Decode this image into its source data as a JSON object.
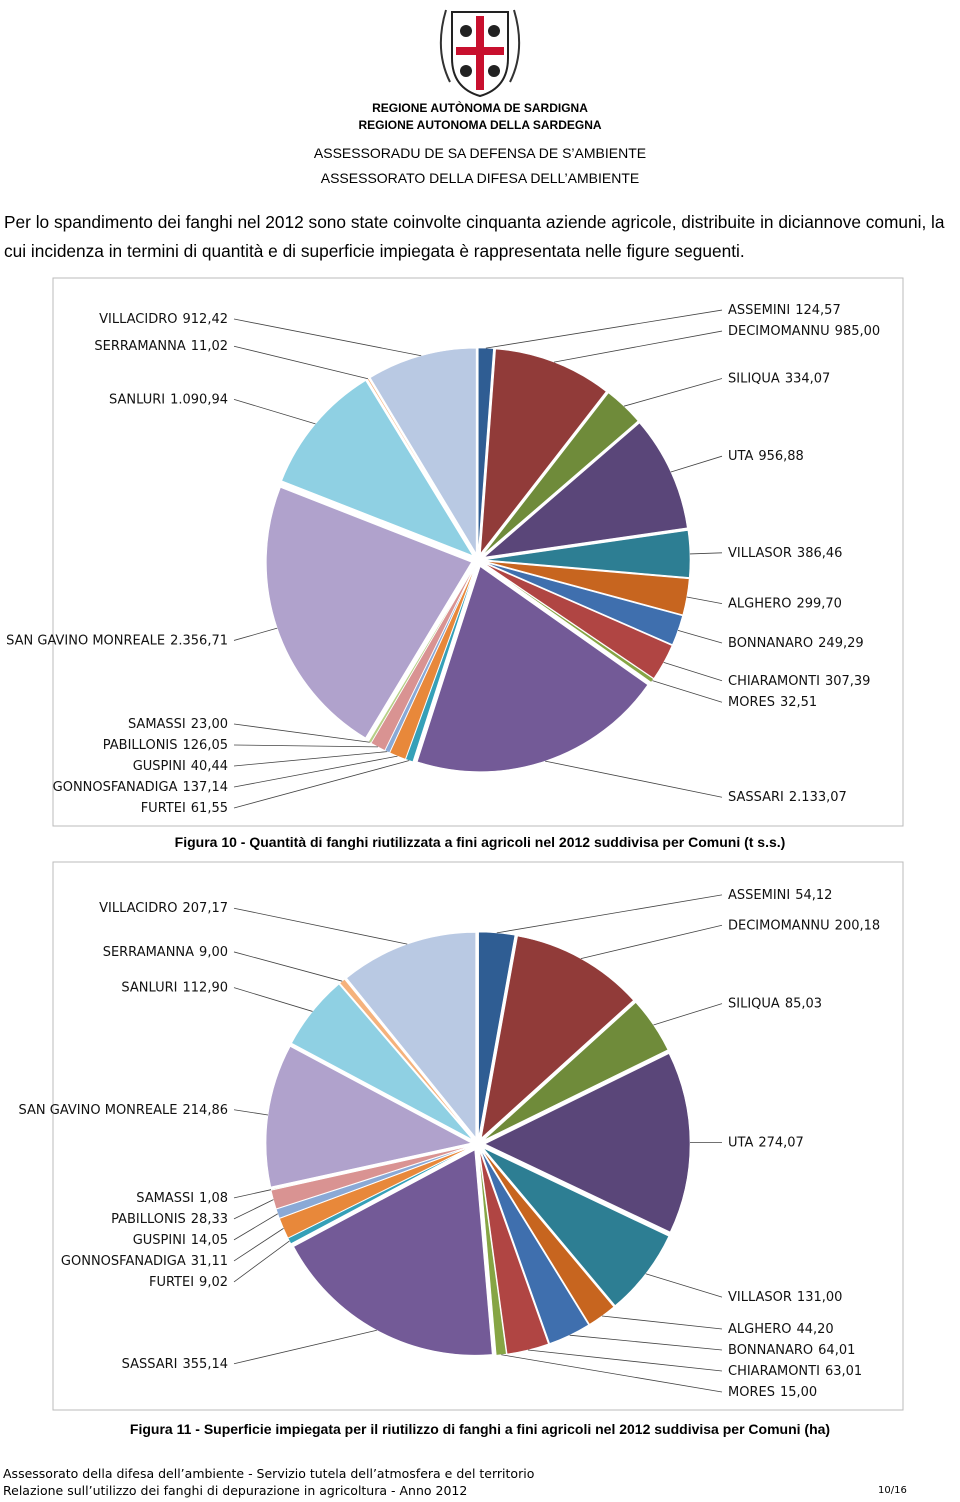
{
  "header": {
    "region_1": "REGIONE AUTÒNOMA DE SARDIGNA",
    "region_2": "REGIONE AUTONOMA DELLA SARDEGNA",
    "dept_1": "ASSESSORADU DE SA DEFENSA DE S’AMBIENTE",
    "dept_2": "ASSESSORATO DELLA DIFESA DELL’AMBIENTE"
  },
  "intro": "Per lo spandimento dei fanghi nel 2012 sono state coinvolte cinquanta aziende agricole, distribuite in diciannove comuni, la cui incidenza in termini di quantità e di superficie impiegata è rappresentata nelle figure seguenti.",
  "chart_data": [
    {
      "type": "pie",
      "caption": "Figura 10 - Quantità di fanghi riutilizzata a fini agricoli nel 2012 suddivisa per Comuni (t s.s.)",
      "categories": [
        "ASSEMINI",
        "DECIMOMANNU",
        "SILIQUA",
        "UTA",
        "VILLASOR",
        "ALGHERO",
        "BONNANARO",
        "CHIARAMONTI",
        "MORES",
        "SASSARI",
        "FURTEI",
        "GONNOSFANADIGA",
        "GUSPINI",
        "PABILLONIS",
        "SAMASSI",
        "SAN GAVINO MONREALE",
        "SANLURI",
        "SERRAMANNA",
        "VILLACIDRO"
      ],
      "values": [
        124.57,
        985.0,
        334.07,
        956.88,
        386.46,
        299.7,
        249.29,
        307.39,
        32.51,
        2133.07,
        61.55,
        137.14,
        40.44,
        126.05,
        23.0,
        2356.71,
        1090.94,
        11.02,
        912.42
      ],
      "value_labels": [
        "124,57",
        "985,00",
        "334,07",
        "956,88",
        "386,46",
        "299,70",
        "249,29",
        "307,39",
        "32,51",
        "2.133,07",
        "61,55",
        "137,14",
        "40,44",
        "126,05",
        "23,00",
        "2.356,71",
        "1.090,94",
        "11,02",
        "912,42"
      ],
      "colors": [
        "#2f5d93",
        "#913b39",
        "#6f8b3a",
        "#5a4679",
        "#2d7e93",
        "#c7651f",
        "#3f6fae",
        "#b04543",
        "#86a544",
        "#735a97",
        "#35a0b8",
        "#e8883a",
        "#8aa9d6",
        "#d99392",
        "#b7cf87",
        "#b0a2cc",
        "#8fd0e3",
        "#f5b27c",
        "#b9c9e3"
      ]
    },
    {
      "type": "pie",
      "caption": "Figura 11 - Superficie impiegata per il riutilizzo di fanghi a fini agricoli nel 2012 suddivisa per Comuni (ha)",
      "categories": [
        "ASSEMINI",
        "DECIMOMANNU",
        "SILIQUA",
        "UTA",
        "VILLASOR",
        "ALGHERO",
        "BONNANARO",
        "CHIARAMONTI",
        "MORES",
        "SASSARI",
        "FURTEI",
        "GONNOSFANADIGA",
        "GUSPINI",
        "PABILLONIS",
        "SAMASSI",
        "SAN GAVINO MONREALE",
        "SANLURI",
        "SERRAMANNA",
        "VILLACIDRO"
      ],
      "values": [
        54.12,
        200.18,
        85.03,
        274.07,
        131.0,
        44.2,
        64.01,
        63.01,
        15.0,
        355.14,
        9.02,
        31.11,
        14.05,
        28.33,
        1.08,
        214.86,
        112.9,
        9.0,
        207.17
      ],
      "value_labels": [
        "54,12",
        "200,18",
        "85,03",
        "274,07",
        "131,00",
        "44,20",
        "64,01",
        "63,01",
        "15,00",
        "355,14",
        "9,02",
        "31,11",
        "14,05",
        "28,33",
        "1,08",
        "214,86",
        "112,90",
        "9,00",
        "207,17"
      ],
      "colors": [
        "#2f5d93",
        "#913b39",
        "#6f8b3a",
        "#5a4679",
        "#2d7e93",
        "#c7651f",
        "#3f6fae",
        "#b04543",
        "#86a544",
        "#735a97",
        "#35a0b8",
        "#e8883a",
        "#8aa9d6",
        "#d99392",
        "#b7cf87",
        "#b0a2cc",
        "#8fd0e3",
        "#f5b27c",
        "#b9c9e3"
      ]
    }
  ],
  "footer": {
    "line_1": "Assessorato della difesa dell’ambiente - Servizio tutela dell’atmosfera e del territorio",
    "line_2": "Relazione sull’utilizzo dei fanghi di depurazione in agricoltura - Anno 2012",
    "page": "10/16"
  }
}
